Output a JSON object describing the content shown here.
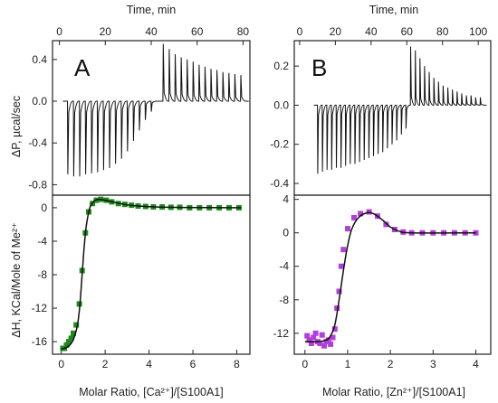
{
  "chart_data": [
    {
      "panel_letter": "A",
      "type": "scatter",
      "top": {
        "xlabel": "Time, min",
        "xticks": [
          0,
          20,
          40,
          60,
          80
        ],
        "xlim": [
          -3,
          83
        ],
        "ylabel": "ΔP, µcal/sec",
        "yticks": [
          0.4,
          0.0,
          -0.4,
          -0.8
        ],
        "yticklabels": [
          "0.4",
          "0.0",
          "-0.4",
          "-0.8"
        ],
        "ylim": [
          -0.9,
          0.58
        ],
        "baseline": 0.0,
        "injection_start_min": 3.5,
        "injection_interval_min": 2.6,
        "peak_heights": [
          -0.7,
          -0.72,
          -0.72,
          -0.7,
          -0.69,
          -0.68,
          -0.66,
          -0.64,
          -0.6,
          -0.55,
          -0.48,
          -0.38,
          -0.28,
          -0.18,
          -0.1,
          0.0,
          0.55,
          0.5,
          0.45,
          0.42,
          0.4,
          0.38,
          0.35,
          0.33,
          0.31,
          0.3,
          0.28,
          0.27,
          0.26,
          0.25
        ]
      },
      "bottom": {
        "xlabel": "Molar Ratio, [Ca²⁺]/[S100A1]",
        "ylabel": "ΔH, KCal/Mole of Me²⁺",
        "xticks": [
          0,
          2,
          4,
          6,
          8
        ],
        "xlim": [
          -0.4,
          8.6
        ],
        "yticks": [
          0,
          -4,
          -8,
          -12,
          -16
        ],
        "ylim": [
          -17.5,
          1.5
        ],
        "marker_color": "#1e8a1e",
        "points": [
          [
            0.07,
            -16.8
          ],
          [
            0.14,
            -16.8
          ],
          [
            0.24,
            -16.4
          ],
          [
            0.34,
            -16.0
          ],
          [
            0.45,
            -15.6
          ],
          [
            0.55,
            -15.0
          ],
          [
            0.68,
            -14.0
          ],
          [
            0.82,
            -11.5
          ],
          [
            0.95,
            -7.5
          ],
          [
            1.1,
            -3.0
          ],
          [
            1.25,
            -0.5
          ],
          [
            1.42,
            0.5
          ],
          [
            1.6,
            0.9
          ],
          [
            1.8,
            1.0
          ],
          [
            2.05,
            0.9
          ],
          [
            2.3,
            0.7
          ],
          [
            2.6,
            0.5
          ],
          [
            2.9,
            0.4
          ],
          [
            3.2,
            0.3
          ],
          [
            3.5,
            0.2
          ],
          [
            3.85,
            0.15
          ],
          [
            4.2,
            0.1
          ],
          [
            4.6,
            0.1
          ],
          [
            5.0,
            0.05
          ],
          [
            5.4,
            0.05
          ],
          [
            5.85,
            0.0
          ],
          [
            6.3,
            0.0
          ],
          [
            6.75,
            0.0
          ],
          [
            7.2,
            0.0
          ],
          [
            7.65,
            0.0
          ],
          [
            8.1,
            0.0
          ]
        ],
        "fit": [
          [
            0.0,
            -16.9
          ],
          [
            0.3,
            -16.6
          ],
          [
            0.5,
            -16.0
          ],
          [
            0.65,
            -15.0
          ],
          [
            0.75,
            -13.8
          ],
          [
            0.85,
            -11.5
          ],
          [
            0.95,
            -8.0
          ],
          [
            1.05,
            -4.5
          ],
          [
            1.15,
            -2.0
          ],
          [
            1.3,
            0.0
          ],
          [
            1.5,
            0.8
          ],
          [
            1.7,
            1.0
          ],
          [
            2.0,
            0.9
          ],
          [
            2.5,
            0.6
          ],
          [
            3.0,
            0.35
          ],
          [
            3.5,
            0.2
          ],
          [
            4.5,
            0.08
          ],
          [
            5.5,
            0.03
          ],
          [
            8.2,
            0.0
          ]
        ]
      }
    },
    {
      "panel_letter": "B",
      "type": "scatter",
      "top": {
        "xlabel": "Time, min",
        "xticks": [
          0,
          20,
          40,
          60,
          80,
          100
        ],
        "xlim": [
          -3,
          107
        ],
        "ylabel": "",
        "yticks": [
          0.2,
          0.0,
          -0.2,
          -0.4
        ],
        "yticklabels": [
          "0.2",
          "0.0",
          "-0.2",
          "-0.4"
        ],
        "ylim": [
          -0.46,
          0.33
        ],
        "baseline": 0.0,
        "injection_start_min": 10,
        "injection_interval_min": 2.6,
        "peak_heights": [
          -0.35,
          -0.34,
          -0.33,
          -0.33,
          -0.32,
          -0.32,
          -0.31,
          -0.3,
          -0.3,
          -0.29,
          -0.28,
          -0.27,
          -0.26,
          -0.25,
          -0.24,
          -0.22,
          -0.2,
          -0.18,
          -0.15,
          -0.12,
          0.3,
          0.28,
          0.24,
          0.2,
          0.17,
          0.14,
          0.12,
          0.1,
          0.09,
          0.08,
          0.07,
          0.06,
          0.05,
          0.05,
          0.04,
          0.04
        ]
      },
      "bottom": {
        "xlabel": "Molar Ratio, [Zn²⁺]/[S100A1]",
        "ylabel": "",
        "xticks": [
          0,
          1,
          2,
          3,
          4
        ],
        "xlim": [
          -0.25,
          4.35
        ],
        "yticks": [
          4,
          0,
          -4,
          -8,
          -12
        ],
        "ylim": [
          -14.5,
          4.5
        ],
        "marker_color": "#b23fd9",
        "points": [
          [
            0.05,
            -12.3
          ],
          [
            0.1,
            -12.8
          ],
          [
            0.15,
            -13.2
          ],
          [
            0.2,
            -12.5
          ],
          [
            0.25,
            -12.0
          ],
          [
            0.3,
            -13.0
          ],
          [
            0.35,
            -13.2
          ],
          [
            0.4,
            -12.2
          ],
          [
            0.45,
            -13.5
          ],
          [
            0.5,
            -13.0
          ],
          [
            0.55,
            -12.8
          ],
          [
            0.6,
            -13.3
          ],
          [
            0.65,
            -12.5
          ],
          [
            0.7,
            -11.5
          ],
          [
            0.75,
            -9.0
          ],
          [
            0.8,
            -7.0
          ],
          [
            0.85,
            -4.0
          ],
          [
            0.9,
            -2.0
          ],
          [
            1.0,
            0.5
          ],
          [
            1.15,
            1.8
          ],
          [
            1.3,
            2.3
          ],
          [
            1.5,
            2.5
          ],
          [
            1.7,
            2.0
          ],
          [
            1.9,
            1.0
          ],
          [
            2.1,
            0.4
          ],
          [
            2.3,
            0.1
          ],
          [
            2.5,
            0.0
          ],
          [
            2.75,
            0.0
          ],
          [
            3.0,
            0.0
          ],
          [
            3.25,
            0.0
          ],
          [
            3.5,
            0.0
          ],
          [
            3.75,
            0.0
          ],
          [
            4.0,
            0.0
          ]
        ],
        "fit": [
          [
            0.0,
            -13.0
          ],
          [
            0.3,
            -13.0
          ],
          [
            0.5,
            -12.8
          ],
          [
            0.6,
            -12.3
          ],
          [
            0.7,
            -11.0
          ],
          [
            0.8,
            -8.0
          ],
          [
            0.9,
            -4.5
          ],
          [
            1.0,
            -1.5
          ],
          [
            1.1,
            0.5
          ],
          [
            1.25,
            1.8
          ],
          [
            1.45,
            2.4
          ],
          [
            1.6,
            2.3
          ],
          [
            1.8,
            1.6
          ],
          [
            2.0,
            0.7
          ],
          [
            2.2,
            0.2
          ],
          [
            2.5,
            0.0
          ],
          [
            4.0,
            0.0
          ]
        ]
      }
    }
  ]
}
